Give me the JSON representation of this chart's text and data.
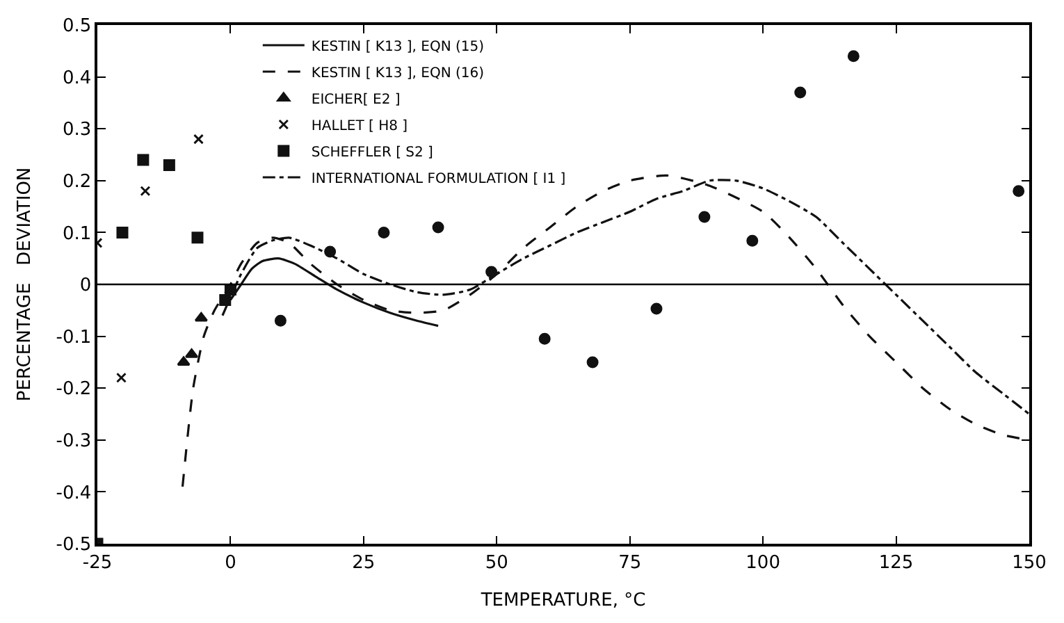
{
  "chart_data": {
    "type": "line",
    "xlabel": "TEMPERATURE, °C",
    "ylabel": "PERCENTAGE   DEVIATION",
    "xlim": [
      -25,
      150
    ],
    "xticks": [
      -25,
      0,
      25,
      50,
      75,
      100,
      125,
      150
    ],
    "ylim": [
      -0.5,
      0.5
    ],
    "yticks": [
      0.5,
      0.4,
      0.3,
      0.2,
      0.1,
      0,
      -0.1,
      -0.2,
      -0.3,
      -0.4,
      -0.5
    ],
    "legend": "top",
    "ref_lines": [
      {
        "axis": "y",
        "value": 0,
        "color": "#000000",
        "line_style": "solid"
      }
    ],
    "series": [
      {
        "name": "KESTIN [ K13 ], EQN (15)",
        "color": "#111111",
        "line_style": "solid",
        "marker": "none",
        "x": [
          0,
          2,
          4,
          6,
          9,
          12,
          16,
          20,
          25,
          30,
          35,
          39
        ],
        "values": [
          -0.03,
          0.0,
          0.03,
          0.045,
          0.05,
          0.04,
          0.015,
          -0.01,
          -0.035,
          -0.055,
          -0.07,
          -0.08
        ]
      },
      {
        "name": "KESTIN [ K13 ], EQN (16)",
        "color": "#111111",
        "line_style": "dashed",
        "marker": "none",
        "x": [
          -9,
          -7,
          -5,
          -3,
          0,
          2,
          5,
          8,
          11,
          15,
          20,
          25,
          30,
          35,
          40,
          45,
          50,
          55,
          60,
          65,
          70,
          75,
          82,
          90,
          100,
          105,
          110,
          115,
          120,
          125,
          130,
          135,
          140,
          145,
          150
        ],
        "values": [
          -0.39,
          -0.2,
          -0.1,
          -0.05,
          0.0,
          0.04,
          0.08,
          0.09,
          0.08,
          0.04,
          0.0,
          -0.03,
          -0.05,
          -0.055,
          -0.05,
          -0.02,
          0.02,
          0.07,
          0.11,
          0.15,
          0.18,
          0.2,
          0.21,
          0.19,
          0.14,
          0.09,
          0.03,
          -0.04,
          -0.1,
          -0.15,
          -0.2,
          -0.24,
          -0.27,
          -0.29,
          -0.3
        ]
      },
      {
        "name": "EICHER[ E2 ]",
        "type": "scatter",
        "color": "#111111",
        "marker": "triangle",
        "x": [
          -5.5,
          -7.3,
          -8.8
        ],
        "values": [
          -0.065,
          -0.135,
          -0.15
        ]
      },
      {
        "name": "HALLET [ H8 ]",
        "type": "scatter",
        "color": "#111111",
        "marker": "cross",
        "x": [
          -25,
          -16,
          -6,
          -20.5
        ],
        "values": [
          0.08,
          0.18,
          0.28,
          -0.18
        ]
      },
      {
        "name": "SCHEFFLER [ S2 ]",
        "type": "scatter",
        "color": "#111111",
        "marker": "square",
        "x": [
          -25,
          -20.3,
          -16.4,
          -11.5,
          -6.2,
          -1,
          0
        ],
        "values": [
          -0.5,
          0.1,
          0.24,
          0.23,
          0.09,
          -0.03,
          -0.01
        ]
      },
      {
        "name": "INTERNATIONAL FORMULATION [ I1 ]",
        "color": "#111111",
        "line_style": "dashdot",
        "marker": "none",
        "x": [
          -1.5,
          2,
          5,
          8,
          11,
          15,
          20,
          25,
          30,
          35,
          40,
          45,
          50,
          55,
          60,
          65,
          70,
          75,
          80,
          85,
          90,
          95,
          100,
          105,
          110,
          115,
          120,
          125,
          130,
          135,
          140,
          145,
          150
        ],
        "values": [
          -0.06,
          0.02,
          0.07,
          0.085,
          0.09,
          0.075,
          0.05,
          0.02,
          0.0,
          -0.015,
          -0.02,
          -0.01,
          0.02,
          0.05,
          0.075,
          0.1,
          0.12,
          0.14,
          0.165,
          0.18,
          0.2,
          0.2,
          0.185,
          0.16,
          0.13,
          0.08,
          0.03,
          -0.02,
          -0.07,
          -0.12,
          -0.17,
          -0.21,
          -0.25
        ]
      },
      {
        "type": "scatter",
        "color": "#111111",
        "marker": "circle",
        "x": [
          9.4,
          18.7,
          28.8,
          39,
          49,
          59,
          68,
          80,
          89,
          98,
          107,
          117,
          148
        ],
        "values": [
          -0.07,
          0.063,
          0.1,
          0.11,
          0.024,
          -0.105,
          -0.15,
          -0.047,
          0.13,
          0.084,
          0.37,
          0.44,
          0.18
        ]
      }
    ]
  }
}
